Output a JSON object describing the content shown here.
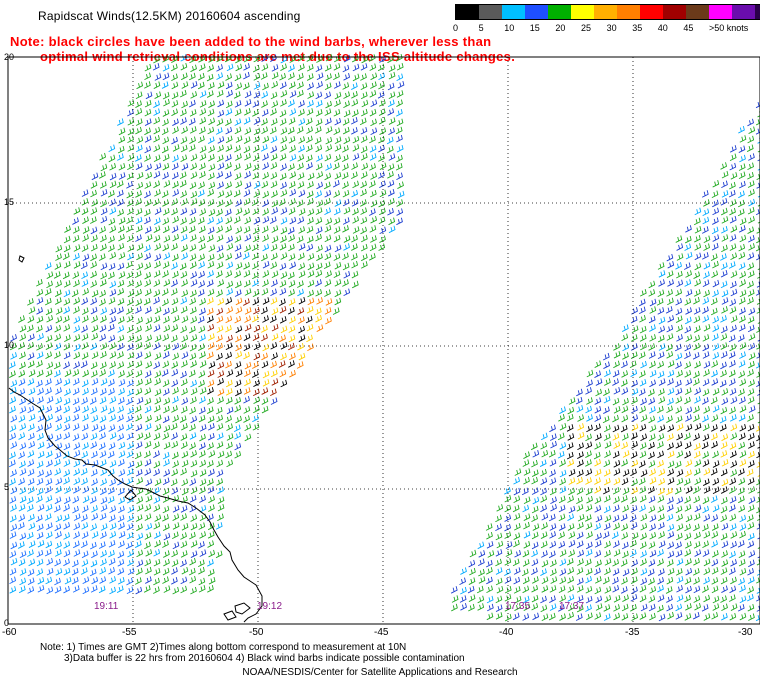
{
  "header": {
    "title": "Rapidscat Winds(12.5KM) 20160604 ascending",
    "note_line1": "Note: black circles have been added to the wind barbs, wherever less than",
    "note_line2": "optimal wind retrieval conditions are met due to the ISS altitude changes."
  },
  "legend": {
    "labels": [
      "0",
      "5",
      "10",
      "15",
      "20",
      "25",
      "30",
      "35",
      "40",
      "45",
      ">50 knots"
    ],
    "colors": [
      "#000000",
      "#5a5a5a",
      "#00bfff",
      "#1e4fff",
      "#00b000",
      "#ffff00",
      "#ffb000",
      "#ff7f00",
      "#ff0000",
      "#a00000",
      "#6b3a1a",
      "#ff00ff",
      "#6a0dad",
      "#2a004a"
    ]
  },
  "axes": {
    "lat_labels": [
      "20",
      "15",
      "10",
      "5",
      "0"
    ],
    "lon_labels": [
      "-60",
      "-55",
      "-50",
      "-45",
      "-40",
      "-35",
      "-30"
    ]
  },
  "swath_times": [
    "19:11",
    "19:12",
    "17:35",
    "17:37"
  ],
  "footer": {
    "line1": "Note: 1) Times are GMT 2)Times along bottom correspond to measurement at 10N",
    "line2": "3)Data buffer is 22 hrs from 20160604 4) Black wind barbs indicate possible contamination",
    "credit": "NOAA/NESDIS/Center for Satellite Applications and Research"
  }
}
